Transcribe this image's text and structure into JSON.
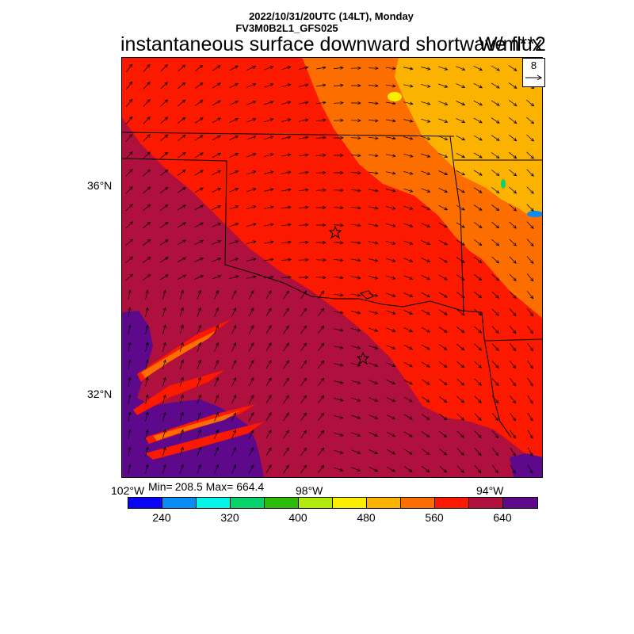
{
  "header": {
    "line1": "2022/10/31/20UTC (14LT), Monday",
    "line2": "FV3M0B2L1_GFS025",
    "title": "instantaneous surface downward shortwave flux",
    "units": "W/m**2"
  },
  "axes": {
    "lat_labels": [
      "36°N",
      "32°N"
    ],
    "lon_labels": [
      "102°W",
      "98°W",
      "94°W"
    ]
  },
  "stats": {
    "min_label": "Min=",
    "min": "208.5",
    "max_label": "Max=",
    "max": "664.4"
  },
  "vector_reference": {
    "value": "8"
  },
  "colorbar": {
    "colors": [
      "#0a04f5",
      "#0a8cf5",
      "#05f5eb",
      "#08d26a",
      "#2cbd0c",
      "#b2ea0c",
      "#fbef00",
      "#fcb200",
      "#fc6e00",
      "#fb1900",
      "#b0103e",
      "#5e088c"
    ],
    "labels": [
      "240",
      "320",
      "400",
      "480",
      "560",
      "640"
    ]
  },
  "map": {
    "markers": [
      "star",
      "star"
    ],
    "colors": {
      "dark_purple": "#5e088c",
      "purple_red": "#b0103e",
      "red": "#fb1900",
      "orange": "#fc6e00",
      "light_orange": "#fcb200"
    }
  }
}
